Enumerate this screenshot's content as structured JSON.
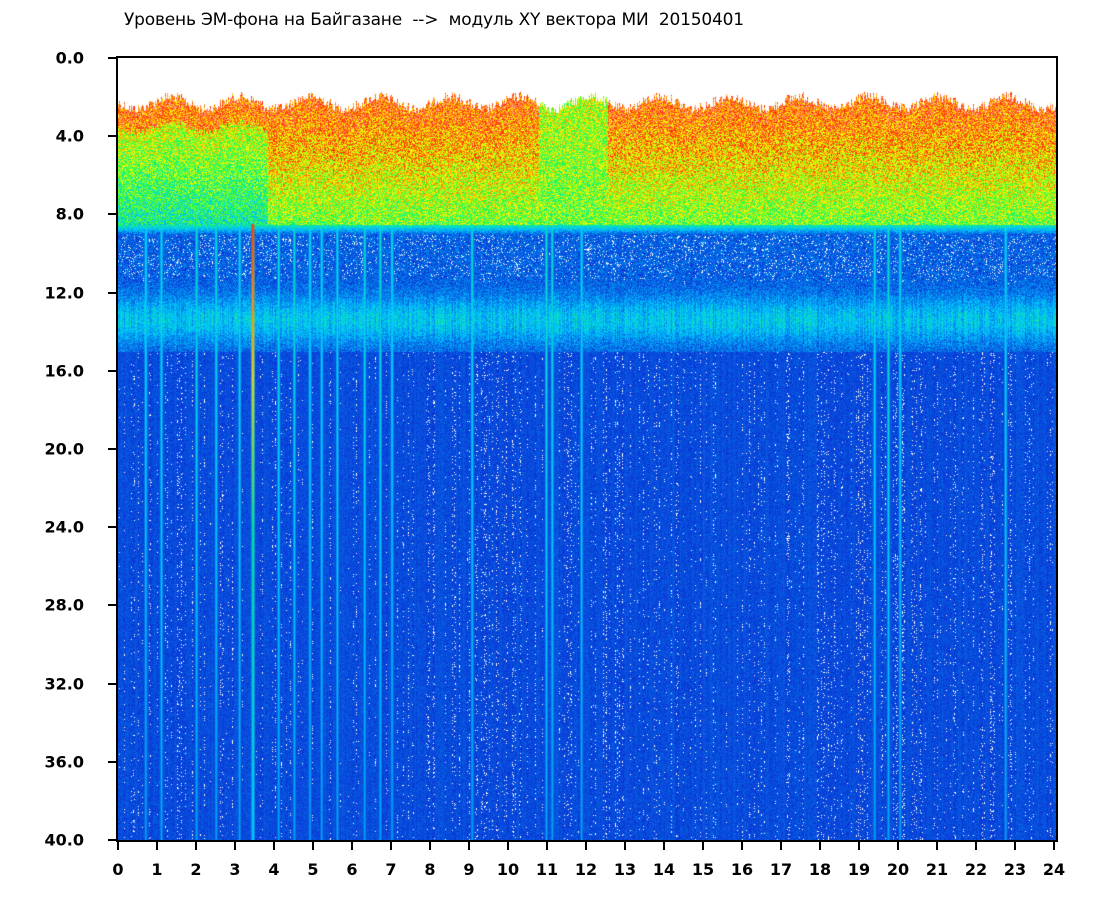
{
  "chart_data": {
    "type": "heatmap",
    "title": "Уровень ЭМ-фона на Байгазане  -->  модуль XY вектора МИ  20150401",
    "xlabel": "",
    "ylabel": "",
    "x_ticks": [
      "0",
      "1",
      "2",
      "3",
      "4",
      "5",
      "6",
      "7",
      "8",
      "9",
      "10",
      "11",
      "12",
      "13",
      "14",
      "15",
      "16",
      "17",
      "18",
      "19",
      "20",
      "21",
      "22",
      "23",
      "24"
    ],
    "y_ticks": [
      "0.0",
      "4.0",
      "8.0",
      "12.0",
      "16.0",
      "20.0",
      "24.0",
      "28.0",
      "32.0",
      "36.0",
      "40.0"
    ],
    "xlim": [
      0,
      24
    ],
    "ylim": [
      0,
      40
    ],
    "y_inverted": true,
    "colormap": [
      "#0a2fd4",
      "#00c8ff",
      "#22ff44",
      "#ffff00",
      "#ff2200",
      "#ffffff"
    ],
    "background_level_color": "#0a2fd4",
    "bands": [
      {
        "y_from": 2.0,
        "y_to": 8.5,
        "level": "high"
      },
      {
        "y_from": 8.5,
        "y_to": 15.0,
        "level": "medium"
      },
      {
        "y_from": 15.0,
        "y_to": 40.0,
        "level": "low"
      }
    ],
    "vertical_streaks": [
      0.7,
      1.1,
      2.0,
      2.5,
      3.1,
      3.45,
      4.1,
      4.5,
      4.9,
      5.2,
      5.6,
      6.3,
      6.7,
      7.0,
      9.05,
      10.95,
      11.1,
      11.85,
      19.35,
      19.7,
      20.0,
      22.7
    ]
  }
}
